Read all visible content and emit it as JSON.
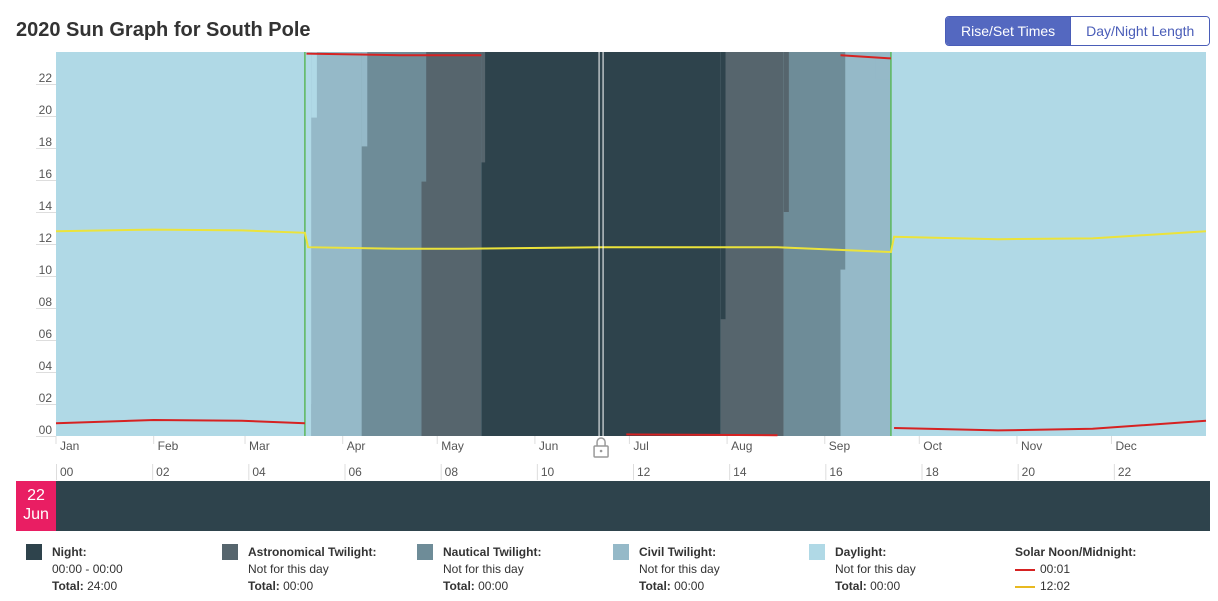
{
  "title": "2020 Sun Graph for South Pole",
  "view_toggle": {
    "rise_set_label": "Rise/Set Times",
    "day_night_label": "Day/Night Length",
    "active": "rise_set"
  },
  "date_marker": {
    "day": "22",
    "month": "Jun"
  },
  "colors": {
    "night": "#2e434c",
    "astronomical": "#56656d",
    "nautical": "#6e8c98",
    "civil": "#95b9c8",
    "daylight": "#b0d9e6",
    "noon_line": "#ebe33b",
    "midnight_line": "#d62222",
    "equinox_line": "#5cb85c"
  },
  "chart_data": {
    "type": "area",
    "title": "2020 Sun Graph for South Pole",
    "x_months": [
      "Jan",
      "Feb",
      "Mar",
      "Apr",
      "May",
      "Jun",
      "Jul",
      "Aug",
      "Sep",
      "Oct",
      "Nov",
      "Dec"
    ],
    "x_range_days": [
      1,
      366
    ],
    "y_ticks": [
      "00",
      "02",
      "04",
      "06",
      "08",
      "10",
      "12",
      "14",
      "16",
      "18",
      "20",
      "22"
    ],
    "y_range_hours": [
      0,
      24
    ],
    "bottom_hour_ticks": [
      "00",
      "02",
      "04",
      "06",
      "08",
      "10",
      "12",
      "14",
      "16",
      "18",
      "20",
      "22"
    ],
    "bands": [
      {
        "type": "daylight",
        "start_day": 1,
        "end_day": 82
      },
      {
        "type": "civil",
        "start_day": 82,
        "end_day": 90
      },
      {
        "type": "daylight",
        "start_day": 265,
        "end_day": 366
      },
      {
        "type": "civil",
        "start_day": 250,
        "end_day": 265
      }
    ],
    "band_steps": [
      {
        "type": "civil",
        "day": 82,
        "top": 24,
        "bottom": 0
      },
      {
        "type": "civil",
        "day": 83,
        "top": 19.9,
        "bottom": 0
      },
      {
        "type": "nautical",
        "day": 90,
        "top": 24,
        "bottom": 0
      },
      {
        "type": "astronomical",
        "day": 106,
        "top": 24,
        "bottom": 0
      },
      {
        "type": "astronomical",
        "day": 107,
        "top": 15.9,
        "bottom": 0
      },
      {
        "type": "night",
        "day": 126,
        "top": 24,
        "bottom": 0
      },
      {
        "type": "night",
        "day": 127,
        "top": 17.1,
        "bottom": 0
      },
      {
        "type": "night",
        "day": 218,
        "top": 24,
        "bottom": 0
      },
      {
        "type": "night",
        "day": 219,
        "top": 7.3,
        "bottom": 0
      },
      {
        "type": "astronomical",
        "day": 238,
        "top": 24,
        "bottom": 0
      },
      {
        "type": "astronomical",
        "day": 239,
        "top": 14,
        "bottom": 0
      },
      {
        "type": "nautical",
        "day": 255,
        "top": 24,
        "bottom": 0
      },
      {
        "type": "nautical",
        "day": 256,
        "top": 10.4,
        "bottom": 0
      },
      {
        "type": "civil",
        "day": 271,
        "top": 22.3,
        "bottom": 0
      },
      {
        "type": "civil",
        "day": 275,
        "top": 0,
        "bottom": 0
      }
    ],
    "periods": [
      {
        "type": "daylight",
        "from": 1,
        "to": 82
      },
      {
        "type": "civil",
        "from": 82,
        "to": 98
      },
      {
        "type": "nautical",
        "from": 98,
        "to": 117
      },
      {
        "type": "astronomical",
        "from": 117,
        "to": 136
      },
      {
        "type": "night",
        "from": 136,
        "to": 212
      },
      {
        "type": "astronomical",
        "from": 212,
        "to": 232
      },
      {
        "type": "nautical",
        "from": 232,
        "to": 250
      },
      {
        "type": "civil",
        "from": 250,
        "to": 266
      },
      {
        "type": "daylight",
        "from": 266,
        "to": 366
      }
    ],
    "equinox_days": [
      80,
      266
    ],
    "selected_day": 174,
    "noon_series": [
      [
        1,
        12.8
      ],
      [
        32,
        12.9
      ],
      [
        60,
        12.85
      ],
      [
        80,
        12.7
      ],
      [
        81,
        11.8
      ],
      [
        110,
        11.7
      ],
      [
        130,
        11.7
      ],
      [
        174,
        11.8
      ],
      [
        200,
        11.8
      ],
      [
        230,
        11.8
      ],
      [
        266,
        11.5
      ],
      [
        267,
        12.45
      ],
      [
        300,
        12.3
      ],
      [
        330,
        12.35
      ],
      [
        366,
        12.8
      ]
    ],
    "midnight_series": [
      [
        1,
        0.8
      ],
      [
        32,
        1.0
      ],
      [
        60,
        0.95
      ],
      [
        80,
        0.8
      ],
      [
        80.5,
        23.9
      ],
      [
        110,
        23.8
      ],
      [
        130,
        23.8
      ],
      [
        136,
        23.8
      ],
      [
        182,
        0.1
      ],
      [
        230,
        0.05
      ],
      [
        250,
        23.8
      ],
      [
        266,
        23.6
      ],
      [
        267,
        0.5
      ],
      [
        300,
        0.35
      ],
      [
        330,
        0.45
      ],
      [
        366,
        0.95
      ]
    ]
  },
  "legend": [
    {
      "key": "night",
      "title": "Night:",
      "line1": "00:00 - 00:00",
      "total_label": "Total:",
      "total": "24:00"
    },
    {
      "key": "astronomical",
      "title": "Astronomical Twilight:",
      "line1": "Not for this day",
      "total_label": "Total:",
      "total": "00:00"
    },
    {
      "key": "nautical",
      "title": "Nautical Twilight:",
      "line1": "Not for this day",
      "total_label": "Total:",
      "total": "00:00"
    },
    {
      "key": "civil",
      "title": "Civil Twilight:",
      "line1": "Not for this day",
      "total_label": "Total:",
      "total": "00:00"
    },
    {
      "key": "daylight",
      "title": "Daylight:",
      "line1": "Not for this day",
      "total_label": "Total:",
      "total": "00:00"
    }
  ],
  "solar": {
    "title": "Solar Noon/Midnight:",
    "midnight_value": "00:01",
    "noon_value": "12:02"
  }
}
